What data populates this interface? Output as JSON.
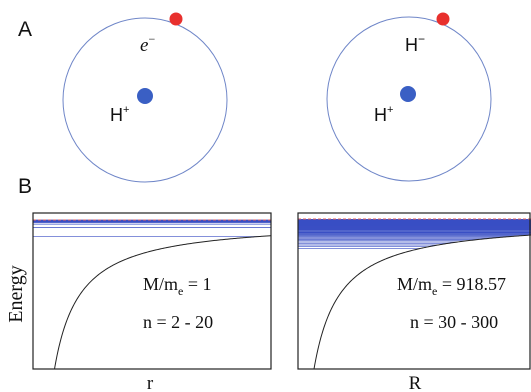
{
  "panel_a": {
    "label": "A",
    "left_atom": {
      "orbiting": "e",
      "orbiting_sup": "−",
      "nucleus": "H",
      "nucleus_sup": "+"
    },
    "right_atom": {
      "orbiting": "H",
      "orbiting_sup": "−",
      "nucleus": "H",
      "nucleus_sup": "+"
    }
  },
  "panel_b": {
    "label": "B",
    "ylabel": "Energy",
    "left_plot": {
      "xlabel": "r",
      "mass_ratio_label": "M/m",
      "mass_ratio_sub": "e",
      "mass_ratio_value": " = 1",
      "n_range": "n = 2 - 20",
      "n_min": 2,
      "n_max": 20
    },
    "right_plot": {
      "xlabel": "R",
      "mass_ratio_label": "M/m",
      "mass_ratio_sub": "e",
      "mass_ratio_value": " = 918.57",
      "n_range": "n = 30 - 300",
      "n_min": 30,
      "n_max": 300
    }
  },
  "colors": {
    "orbit": "#6f86c8",
    "electron": "#e8302d",
    "nucleus": "#3a5fc4",
    "level": "#3a4fc4",
    "dashed": "#e06060",
    "curve": "#222222",
    "frame": "#222222"
  }
}
